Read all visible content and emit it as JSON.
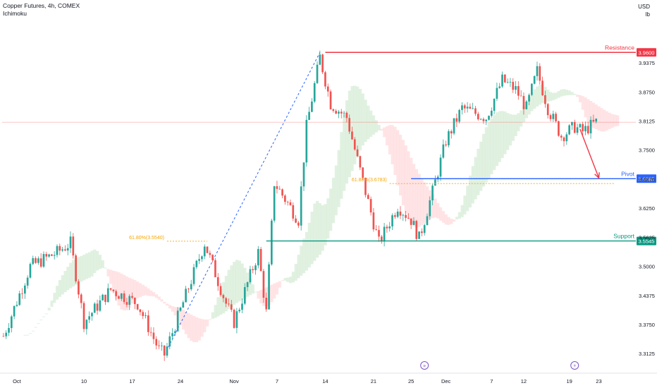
{
  "header": {
    "symbol_line": "Copper Futures, 4h, COMEX",
    "indicator": "Ichimoku"
  },
  "currency": {
    "code": "USD",
    "unit": "lb"
  },
  "colors": {
    "up": "#26a69a",
    "down": "#ef5350",
    "resistance": "#f23645",
    "pivot": "#2962ff",
    "support": "#089981",
    "fib": "#f7a600",
    "cloud_bull": "#c8e6c9",
    "cloud_bear": "#ffcdd2",
    "arrow": "#f23645",
    "zigzag": "#2962ff",
    "axis_text": "#131722",
    "event_icon": "#7e57c2"
  },
  "chart_data": {
    "type": "candlestick",
    "ylim": [
      3.29,
      4.015
    ],
    "y_ticks": [
      "3.9375",
      "3.8750",
      "3.8125",
      "3.7500",
      "3.6875",
      "3.6250",
      "3.5625",
      "3.5000",
      "3.4375",
      "3.3750",
      "3.3125"
    ],
    "x_ticks": [
      {
        "label": "Oct",
        "bar": 5
      },
      {
        "label": "10",
        "bar": 30
      },
      {
        "label": "17",
        "bar": 48
      },
      {
        "label": "24",
        "bar": 66
      },
      {
        "label": "Nov",
        "bar": 86
      },
      {
        "label": "7",
        "bar": 102
      },
      {
        "label": "14",
        "bar": 120
      },
      {
        "label": "21",
        "bar": 138
      },
      {
        "label": "25",
        "bar": 152
      },
      {
        "label": "Dec",
        "bar": 165
      },
      {
        "label": "7",
        "bar": 182
      },
      {
        "label": "12",
        "bar": 194
      },
      {
        "label": "19",
        "bar": 211
      },
      {
        "label": "23",
        "bar": 222
      }
    ],
    "bar_count": 230,
    "price_path": [
      [
        0,
        3.35
      ],
      [
        10,
        3.5
      ],
      [
        20,
        3.53
      ],
      [
        25,
        3.55
      ],
      [
        30,
        3.38
      ],
      [
        40,
        3.45
      ],
      [
        50,
        3.42
      ],
      [
        58,
        3.32
      ],
      [
        60,
        3.31
      ],
      [
        70,
        3.47
      ],
      [
        75,
        3.55
      ],
      [
        83,
        3.42
      ],
      [
        86,
        3.38
      ],
      [
        95,
        3.53
      ],
      [
        98,
        3.4
      ],
      [
        101,
        3.68
      ],
      [
        110,
        3.6
      ],
      [
        113,
        3.8
      ],
      [
        118,
        3.95
      ],
      [
        122,
        3.85
      ],
      [
        128,
        3.82
      ],
      [
        135,
        3.66
      ],
      [
        140,
        3.55
      ],
      [
        147,
        3.63
      ],
      [
        152,
        3.6
      ],
      [
        155,
        3.56
      ],
      [
        160,
        3.66
      ],
      [
        165,
        3.77
      ],
      [
        171,
        3.84
      ],
      [
        180,
        3.82
      ],
      [
        186,
        3.9
      ],
      [
        191,
        3.88
      ],
      [
        195,
        3.84
      ],
      [
        199,
        3.92
      ],
      [
        203,
        3.84
      ],
      [
        208,
        3.78
      ],
      [
        213,
        3.8
      ],
      [
        216,
        3.79
      ],
      [
        221,
        3.81
      ]
    ],
    "levels": [
      {
        "name": "Resistance",
        "price": 3.96,
        "value_label": "3.9600",
        "x_start_bar": 120
      },
      {
        "name": "Pivot",
        "price": 3.6885,
        "value_label": "3.6885",
        "x_start_bar": 152
      },
      {
        "name": "Support",
        "price": 3.5545,
        "value_label": "3.5545",
        "x_start_bar": 98
      }
    ],
    "fib_labels": [
      {
        "text": "61.80%(3.5540)",
        "price": 3.554,
        "x_start_bar": 61,
        "x_end_bar": 76
      },
      {
        "text": "61.80%(3.6783)",
        "price": 3.678,
        "x_start_bar": 144,
        "x_end_bar": 228
      }
    ],
    "zigzag": [
      [
        60,
        3.31
      ],
      [
        118,
        3.96
      ]
    ],
    "last_price_line": 3.81,
    "projection_arrow": {
      "from": [
        215,
        3.795
      ],
      "to": [
        222,
        3.69
      ]
    },
    "event_icons": [
      {
        "bar": 157,
        "glyph": "»"
      },
      {
        "bar": 213,
        "glyph": "⚡"
      }
    ]
  }
}
